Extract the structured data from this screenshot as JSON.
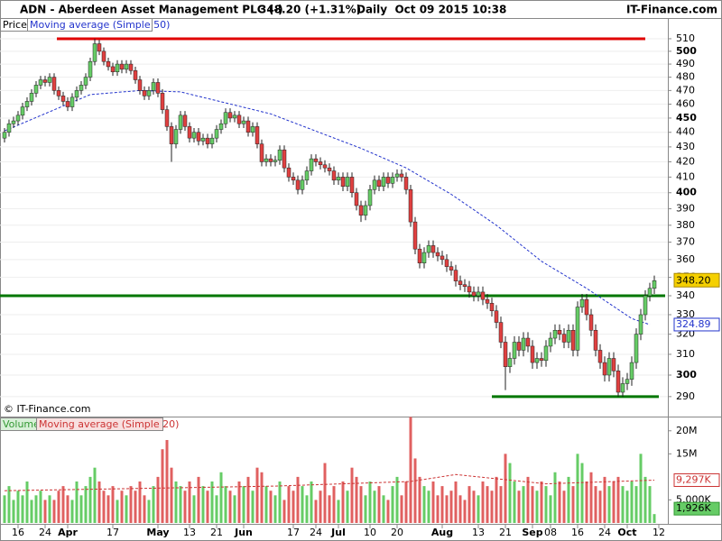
{
  "header": {
    "title": "ADN - Aberdeen Asset Management PLC (-)",
    "quote": "348.20 (+1.31%)",
    "period": "Daily  Oct 09 2015 10:38",
    "brand": "IT-Finance.com",
    "copyright": "© IT-Finance.com"
  },
  "chart_data": [
    {
      "type": "candlestick",
      "legend": "Price",
      "log_scale": true,
      "grid": true,
      "xlim": [
        -1,
        146.4
      ],
      "ylim": [
        281.8,
        515.8
      ],
      "yticks": [
        290,
        300,
        310,
        320,
        330,
        340,
        350,
        360,
        370,
        380,
        390,
        400,
        410,
        420,
        430,
        440,
        450,
        460,
        470,
        480,
        490,
        500,
        510
      ],
      "up_color": "#66cc66",
      "down_color": "#e04040",
      "open": [
        436,
        440,
        446,
        448,
        452,
        458,
        462,
        468,
        474,
        478,
        476,
        480,
        470,
        466,
        462,
        458,
        465,
        470,
        474,
        480,
        492,
        506,
        500,
        492,
        488,
        484,
        490,
        486,
        490,
        485,
        478,
        470,
        466,
        470,
        476,
        468,
        456,
        444,
        432,
        442,
        452,
        444,
        436,
        440,
        434,
        436,
        432,
        436,
        442,
        446,
        454,
        450,
        452,
        446,
        448,
        440,
        444,
        432,
        420,
        422,
        420,
        421,
        428,
        416,
        410,
        408,
        402,
        408,
        414,
        422,
        420,
        418,
        416,
        414,
        408,
        410,
        404,
        410,
        400,
        392,
        386,
        392,
        402,
        408,
        404,
        410,
        406,
        410,
        412,
        410,
        402,
        382,
        366,
        358,
        364,
        368,
        364,
        362,
        360,
        356,
        354,
        348,
        346,
        345,
        342,
        340,
        342,
        338,
        336,
        332,
        326,
        316,
        304,
        308,
        316,
        312,
        318,
        314,
        306,
        308,
        307,
        314,
        318,
        322,
        320,
        316,
        322,
        312,
        334,
        338,
        330,
        322,
        312,
        306,
        300,
        308,
        302,
        292,
        296,
        298,
        306,
        320,
        330,
        340,
        344
      ],
      "high": [
        443,
        449,
        451,
        455,
        461,
        465,
        471,
        477,
        481,
        481,
        483,
        483,
        473,
        469,
        465,
        468,
        473,
        477,
        483,
        495,
        510,
        509,
        503,
        495,
        491,
        493,
        493,
        493,
        493,
        488,
        481,
        473,
        473,
        479,
        479,
        471,
        459,
        447,
        445,
        455,
        455,
        447,
        443,
        443,
        439,
        439,
        439,
        445,
        449,
        457,
        457,
        455,
        455,
        451,
        451,
        447,
        447,
        435,
        425,
        425,
        424,
        431,
        431,
        419,
        413,
        411,
        411,
        417,
        425,
        425,
        423,
        421,
        419,
        417,
        413,
        413,
        413,
        413,
        403,
        395,
        395,
        405,
        411,
        411,
        413,
        413,
        413,
        415,
        415,
        413,
        405,
        385,
        369,
        367,
        371,
        371,
        367,
        365,
        363,
        359,
        357,
        351,
        349,
        348,
        345,
        345,
        345,
        341,
        339,
        335,
        329,
        319,
        311,
        319,
        319,
        321,
        321,
        317,
        311,
        311,
        317,
        321,
        325,
        325,
        323,
        325,
        325,
        337,
        341,
        341,
        333,
        325,
        315,
        309,
        311,
        311,
        305,
        299,
        301,
        309,
        323,
        333,
        343,
        347,
        351
      ],
      "low": [
        433,
        437,
        443,
        445,
        449,
        455,
        459,
        465,
        471,
        473,
        473,
        467,
        463,
        459,
        455,
        455,
        462,
        467,
        471,
        477,
        489,
        497,
        489,
        485,
        481,
        481,
        483,
        483,
        482,
        475,
        467,
        463,
        463,
        467,
        465,
        453,
        441,
        420,
        429,
        439,
        441,
        433,
        433,
        431,
        431,
        429,
        429,
        433,
        439,
        443,
        447,
        447,
        443,
        443,
        437,
        437,
        429,
        417,
        417,
        417,
        417,
        418,
        413,
        407,
        405,
        399,
        399,
        405,
        411,
        417,
        415,
        413,
        411,
        405,
        405,
        401,
        401,
        397,
        389,
        382,
        383,
        389,
        399,
        401,
        401,
        403,
        403,
        407,
        407,
        399,
        379,
        363,
        355,
        355,
        361,
        361,
        359,
        357,
        353,
        351,
        345,
        343,
        342,
        339,
        337,
        337,
        335,
        333,
        329,
        323,
        313,
        293,
        301,
        305,
        309,
        309,
        311,
        303,
        303,
        304,
        304,
        311,
        315,
        317,
        313,
        313,
        309,
        309,
        331,
        327,
        319,
        309,
        303,
        297,
        297,
        299,
        290,
        290,
        293,
        295,
        303,
        317,
        327,
        337,
        341
      ],
      "close": [
        440,
        446,
        448,
        452,
        458,
        462,
        468,
        474,
        478,
        476,
        480,
        470,
        466,
        462,
        458,
        465,
        470,
        474,
        480,
        492,
        506,
        500,
        492,
        488,
        484,
        490,
        486,
        490,
        485,
        478,
        470,
        466,
        470,
        476,
        468,
        456,
        444,
        432,
        442,
        452,
        444,
        436,
        440,
        434,
        436,
        432,
        436,
        442,
        446,
        454,
        450,
        452,
        446,
        448,
        440,
        444,
        432,
        420,
        422,
        420,
        421,
        428,
        416,
        410,
        408,
        402,
        408,
        414,
        422,
        420,
        418,
        416,
        414,
        408,
        410,
        404,
        410,
        400,
        392,
        386,
        392,
        402,
        408,
        404,
        410,
        406,
        410,
        412,
        410,
        402,
        382,
        366,
        358,
        364,
        368,
        364,
        362,
        360,
        356,
        354,
        348,
        346,
        345,
        342,
        340,
        342,
        338,
        336,
        332,
        326,
        316,
        304,
        308,
        316,
        312,
        318,
        314,
        306,
        308,
        307,
        314,
        318,
        322,
        320,
        316,
        322,
        312,
        334,
        338,
        330,
        322,
        312,
        306,
        300,
        308,
        302,
        292,
        296,
        298,
        306,
        320,
        330,
        340,
        344,
        348.2
      ],
      "last": {
        "value": 348.2,
        "label": "348.20",
        "color": "#f5d000"
      },
      "series": [
        {
          "name": "Moving average (Simple 50)",
          "color": "#2233cc",
          "x": [
            0,
            19,
            30,
            39,
            59,
            79,
            89,
            99,
            109,
            119,
            129,
            139,
            143
          ],
          "values": [
            441,
            467,
            470,
            469,
            453,
            429,
            416,
            399,
            380,
            359,
            344,
            328,
            324.89
          ],
          "last_label": "324.89"
        }
      ],
      "hlines": [
        {
          "value": 510,
          "from": 11.6,
          "to": 142,
          "color": "#e00000"
        },
        {
          "value": 340,
          "from": -1,
          "to": 146.4,
          "color": "#007700"
        },
        {
          "value": 290,
          "from": 108,
          "to": 145,
          "color": "#007700"
        }
      ]
    },
    {
      "type": "bar",
      "legend": "Volume",
      "xlim": [
        -1,
        146.4
      ],
      "ylim": [
        0,
        22.5
      ],
      "up_color": "#66cc66",
      "down_color": "#e06060",
      "yticks": [
        {
          "value": 5,
          "label": "5,000K"
        },
        {
          "value": 15,
          "label": "15M"
        },
        {
          "value": 20,
          "label": "20M"
        }
      ],
      "values": [
        6,
        8,
        5,
        7,
        6,
        9,
        5,
        6,
        7,
        5,
        6,
        5,
        7,
        8,
        6,
        5,
        9,
        6,
        8,
        10,
        12,
        9,
        7,
        6,
        8,
        5,
        7,
        6,
        8,
        7,
        9,
        6,
        5,
        8,
        10,
        16,
        18,
        12,
        9,
        8,
        7,
        9,
        6,
        10,
        8,
        7,
        9,
        6,
        11,
        8,
        7,
        6,
        9,
        8,
        10,
        7,
        12,
        11,
        8,
        7,
        6,
        9,
        5,
        8,
        7,
        10,
        8,
        6,
        9,
        5,
        7,
        13,
        6,
        8,
        5,
        9,
        7,
        12,
        10,
        8,
        6,
        9,
        7,
        8,
        6,
        5,
        8,
        10,
        6,
        9,
        23,
        14,
        10,
        8,
        7,
        9,
        6,
        8,
        6,
        7,
        9,
        6,
        5,
        8,
        7,
        6,
        9,
        8,
        7,
        10,
        8,
        15,
        13,
        9,
        7,
        8,
        10,
        8,
        7,
        9,
        8,
        6,
        11,
        9,
        7,
        10,
        8,
        15,
        13,
        9,
        11,
        8,
        7,
        10,
        8,
        9,
        10,
        8,
        7,
        9,
        8,
        15,
        10,
        8,
        1.926
      ],
      "last_label": "1,926K",
      "series": [
        {
          "name": "Moving average (Simple 20)",
          "color": "#cc3333",
          "x": [
            0,
            30,
            60,
            90,
            100,
            120,
            144
          ],
          "values": [
            7,
            7.5,
            8,
            9,
            10.5,
            8.5,
            9.297
          ],
          "last_label": "9,297K"
        }
      ],
      "xticks": [
        {
          "value": 3,
          "label": "16"
        },
        {
          "value": 9,
          "label": "24"
        },
        {
          "value": 14,
          "label": "Apr"
        },
        {
          "value": 24,
          "label": "17"
        },
        {
          "value": 34,
          "label": "May"
        },
        {
          "value": 41,
          "label": "13"
        },
        {
          "value": 47,
          "label": "21"
        },
        {
          "value": 53,
          "label": "Jun"
        },
        {
          "value": 64,
          "label": "17"
        },
        {
          "value": 69,
          "label": "24"
        },
        {
          "value": 74,
          "label": "Jul"
        },
        {
          "value": 81,
          "label": "10"
        },
        {
          "value": 87,
          "label": "20"
        },
        {
          "value": 97,
          "label": "Aug"
        },
        {
          "value": 105,
          "label": "13"
        },
        {
          "value": 111,
          "label": "21"
        },
        {
          "value": 117,
          "label": "Sep"
        },
        {
          "value": 121,
          "label": "08"
        },
        {
          "value": 127,
          "label": "16"
        },
        {
          "value": 133,
          "label": "24"
        },
        {
          "value": 138,
          "label": "Oct"
        },
        {
          "value": 145,
          "label": "12"
        }
      ]
    }
  ]
}
